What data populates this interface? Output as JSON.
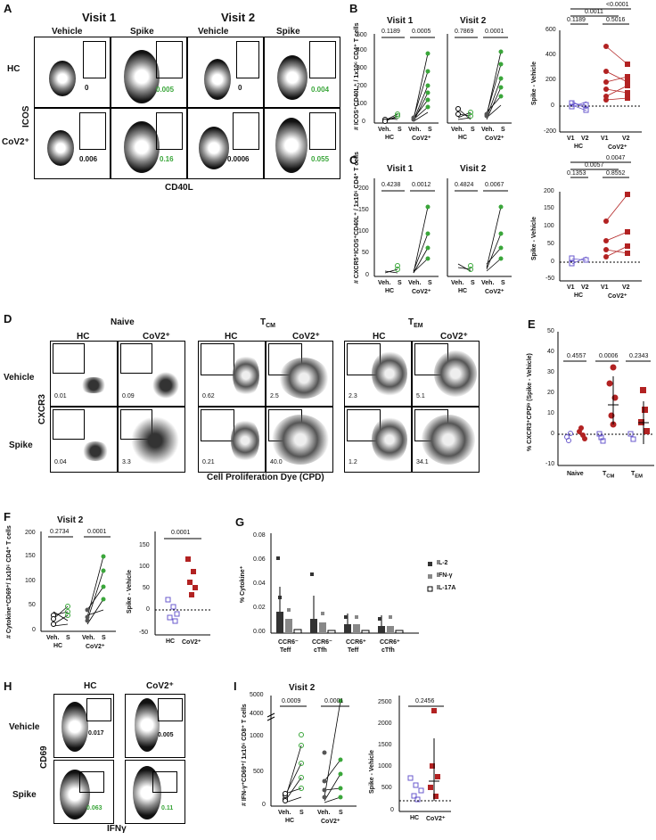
{
  "panels": {
    "A": {
      "letter": "A",
      "visit1": "Visit 1",
      "visit2": "Visit 2",
      "cols": [
        "Vehicle",
        "Spike",
        "Vehicle",
        "Spike"
      ],
      "rows": [
        "HC",
        "CoV2⁺"
      ],
      "ylabel": "ICOS",
      "xlabel": "CD40L",
      "values": [
        [
          "0",
          "0.005",
          "0",
          "0.004"
        ],
        [
          "0.006",
          "0.16",
          "0.0006",
          "0.055"
        ]
      ]
    },
    "B": {
      "letter": "B",
      "ylabel": "# ICOS⁺CD40L⁺ / 1x10⁶ CD4⁺ T cells",
      "visit1": "Visit 1",
      "visit2": "Visit 2",
      "pvals_v1": [
        "0.1189",
        "0.0005"
      ],
      "pvals_v2": [
        "0.7869",
        "0.0001"
      ],
      "yticks": [
        "0",
        "100",
        "200",
        "300",
        "400",
        "500"
      ],
      "xt_top": [
        "Veh.",
        "S",
        "Veh.",
        "S"
      ],
      "xt_bottom": [
        "HC",
        "CoV2⁺"
      ],
      "right_ylabel": "Spike - Vehicle",
      "right_yticks": [
        "-200",
        "0",
        "200",
        "400",
        "600"
      ],
      "right_pvals": [
        "<0.0001",
        "0.0011",
        "0.1189",
        "0.5016"
      ],
      "right_xt_top": [
        "V1",
        "V2",
        "V1",
        "V2"
      ],
      "right_xt_bottom": [
        "HC",
        "CoV2⁺"
      ]
    },
    "C": {
      "letter": "C",
      "ylabel": "# CXCR5⁺ICOS⁺CD40L⁺ / 1x10⁶ CD4⁺ T cells",
      "visit1": "Visit 1",
      "visit2": "Visit 2",
      "pvals_v1": [
        "0.4238",
        "0.0012"
      ],
      "pvals_v2": [
        "0.4824",
        "0.0067"
      ],
      "yticks": [
        "0",
        "50",
        "100",
        "150",
        "200"
      ],
      "right_ylabel": "Spike - Vehicle",
      "right_yticks": [
        "-50",
        "0",
        "50",
        "100",
        "150",
        "200"
      ],
      "right_pvals": [
        "0.0047",
        "0.0057",
        "0.1353",
        "0.8552"
      ]
    },
    "D": {
      "letter": "D",
      "groups": [
        "Naive",
        "T",
        "T"
      ],
      "group_subs": [
        "",
        "CM",
        "EM"
      ],
      "cols": [
        "HC",
        "CoV2⁺",
        "HC",
        "CoV2⁺",
        "HC",
        "CoV2⁺"
      ],
      "rows": [
        "Vehicle",
        "Spike"
      ],
      "ylabel": "CXCR3",
      "xlabel": "Cell Proliferation Dye (CPD)",
      "values": [
        [
          "0.01",
          "0.09",
          "0.62",
          "2.5",
          "2.3",
          "5.1"
        ],
        [
          "0.04",
          "3.3",
          "0.21",
          "40.0",
          "1.2",
          "34.1"
        ]
      ]
    },
    "E": {
      "letter": "E",
      "ylabel": "% CXCR3⁺CPDˡᵒ (Spike - Vehicle)",
      "yticks": [
        "-10",
        "0",
        "10",
        "20",
        "30",
        "40",
        "50"
      ],
      "pvals": [
        "0.4557",
        "0.0006",
        "0.2343"
      ],
      "xcats": [
        "Naive",
        "T",
        "T"
      ],
      "xcat_subs": [
        "",
        "CM",
        "EM"
      ]
    },
    "F": {
      "letter": "F",
      "title": "Visit 2",
      "ylabel": "# Cytokine⁺CD69⁺/ 1x10⁶ CD4⁺ T cells",
      "yticks": [
        "0",
        "50",
        "100",
        "150",
        "200"
      ],
      "pvals": [
        "0.2734",
        "0.0001"
      ],
      "right_pval": "0.0001",
      "right_ylabel": "Spike - Vehicle",
      "right_yticks": [
        "-50",
        "0",
        "50",
        "100",
        "150"
      ],
      "right_xt": [
        "HC",
        "CoV2⁺"
      ]
    },
    "G": {
      "letter": "G",
      "ylabel": "% Cytokine⁺",
      "yticks": [
        "0.00",
        "0.02",
        "0.04",
        "0.06",
        "0.08"
      ],
      "legend": [
        "IL-2",
        "IFN-γ",
        "IL-17A"
      ],
      "cats": [
        [
          "CCR6⁻",
          "Teff"
        ],
        [
          "CCR6⁻",
          "cTfh"
        ],
        [
          "CCR6⁺",
          "Teff"
        ],
        [
          "CCR6⁺",
          "cTfh"
        ]
      ]
    },
    "H": {
      "letter": "H",
      "cols": [
        "HC",
        "CoV2⁺"
      ],
      "rows": [
        "Vehicle",
        "Spike"
      ],
      "ylabel": "CD69",
      "xlabel": "IFNγ",
      "values": [
        [
          "0.017",
          "0.005"
        ],
        [
          "0.063",
          "0.11"
        ]
      ]
    },
    "I": {
      "letter": "I",
      "title": "Visit 2",
      "ylabel": "# IFN-γ⁺CD69⁺/ 1x10⁶ CD8⁺ T cells",
      "yticks": [
        "0",
        "500",
        "1000",
        "4000",
        "5000"
      ],
      "pvals": [
        "0.0009",
        "0.0001"
      ],
      "right_pval": "0.2456",
      "right_ylabel": "Spike - Vehicle",
      "right_yticks": [
        "0",
        "500",
        "1000",
        "1500",
        "2000",
        "2500"
      ],
      "right_xt": [
        "HC",
        "CoV2⁺"
      ]
    }
  },
  "colors": {
    "green": "#3aa63a",
    "red": "#b22222",
    "blue": "#6a5acd",
    "gray": "#808080"
  }
}
